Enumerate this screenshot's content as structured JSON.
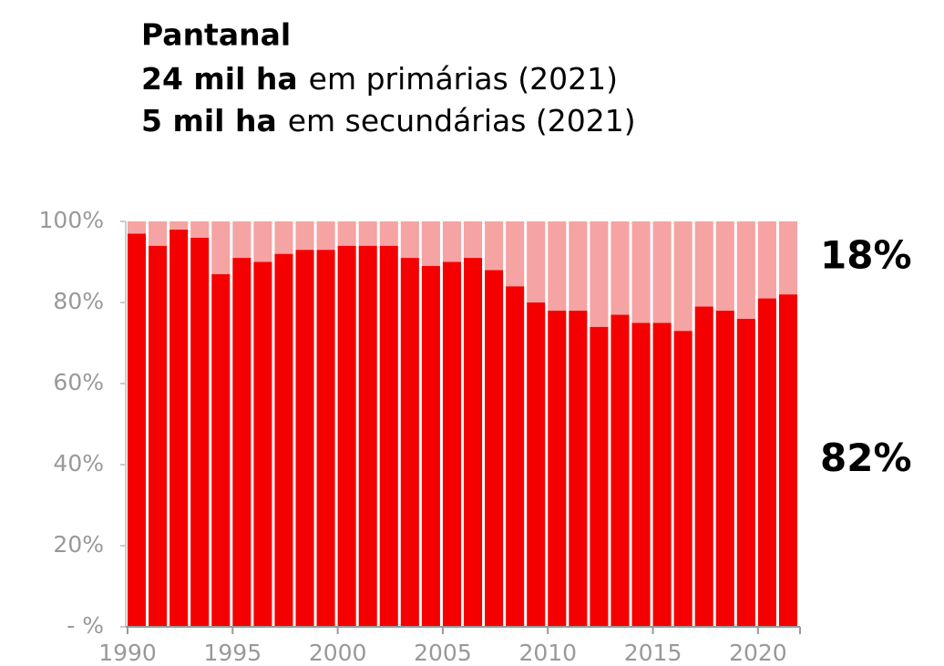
{
  "chart_data": {
    "type": "stacked_bar",
    "title": "Pantanal",
    "subtitle_lines": [
      {
        "bold": "24 mil ha",
        "text": "em primárias (2021)"
      },
      {
        "bold": "5 mil ha",
        "text": "em secundárias (2021)"
      }
    ],
    "x": [
      1990,
      1991,
      1992,
      1993,
      1994,
      1995,
      1996,
      1997,
      1998,
      1999,
      2000,
      2001,
      2002,
      2003,
      2004,
      2005,
      2006,
      2007,
      2008,
      2009,
      2010,
      2011,
      2012,
      2013,
      2014,
      2015,
      2016,
      2017,
      2018,
      2019,
      2020,
      2021
    ],
    "series": [
      {
        "color": "#f50000",
        "values": [
          97,
          94,
          98,
          96,
          87,
          91,
          90,
          92,
          93,
          93,
          94,
          94,
          94,
          91,
          89,
          90,
          91,
          88,
          84,
          80,
          78,
          78,
          74,
          77,
          75,
          75,
          73,
          79,
          78,
          76,
          81,
          82
        ],
        "value_labels": [
          null,
          null,
          null,
          null,
          null,
          null,
          null,
          null,
          null,
          null,
          null,
          null,
          null,
          null,
          null,
          null,
          null,
          null,
          null,
          null,
          null,
          null,
          null,
          null,
          null,
          null,
          null,
          null,
          null,
          null,
          null,
          "82%"
        ]
      },
      {
        "color": "#f5a3a3",
        "values": [
          3,
          6,
          2,
          4,
          13,
          9,
          10,
          8,
          7,
          7,
          6,
          6,
          6,
          9,
          11,
          10,
          9,
          12,
          16,
          20,
          22,
          22,
          26,
          23,
          25,
          25,
          27,
          21,
          22,
          24,
          19,
          18
        ],
        "value_labels": [
          null,
          null,
          null,
          null,
          null,
          null,
          null,
          null,
          null,
          null,
          null,
          null,
          null,
          null,
          null,
          null,
          null,
          null,
          null,
          null,
          null,
          null,
          null,
          null,
          null,
          null,
          null,
          null,
          null,
          null,
          null,
          "18%"
        ]
      }
    ],
    "xlim": [
      1990,
      2022
    ],
    "xticks": [
      1990,
      1995,
      2000,
      2005,
      2010,
      2015,
      2020
    ],
    "ylim": [
      0,
      100
    ],
    "yticks": [
      {
        "value": 0,
        "label": "- %"
      },
      {
        "value": 20,
        "label": "20%"
      },
      {
        "value": 40,
        "label": "40%"
      },
      {
        "value": 60,
        "label": "60%"
      },
      {
        "value": 80,
        "label": "80%"
      },
      {
        "value": 100,
        "label": "100%"
      }
    ]
  }
}
